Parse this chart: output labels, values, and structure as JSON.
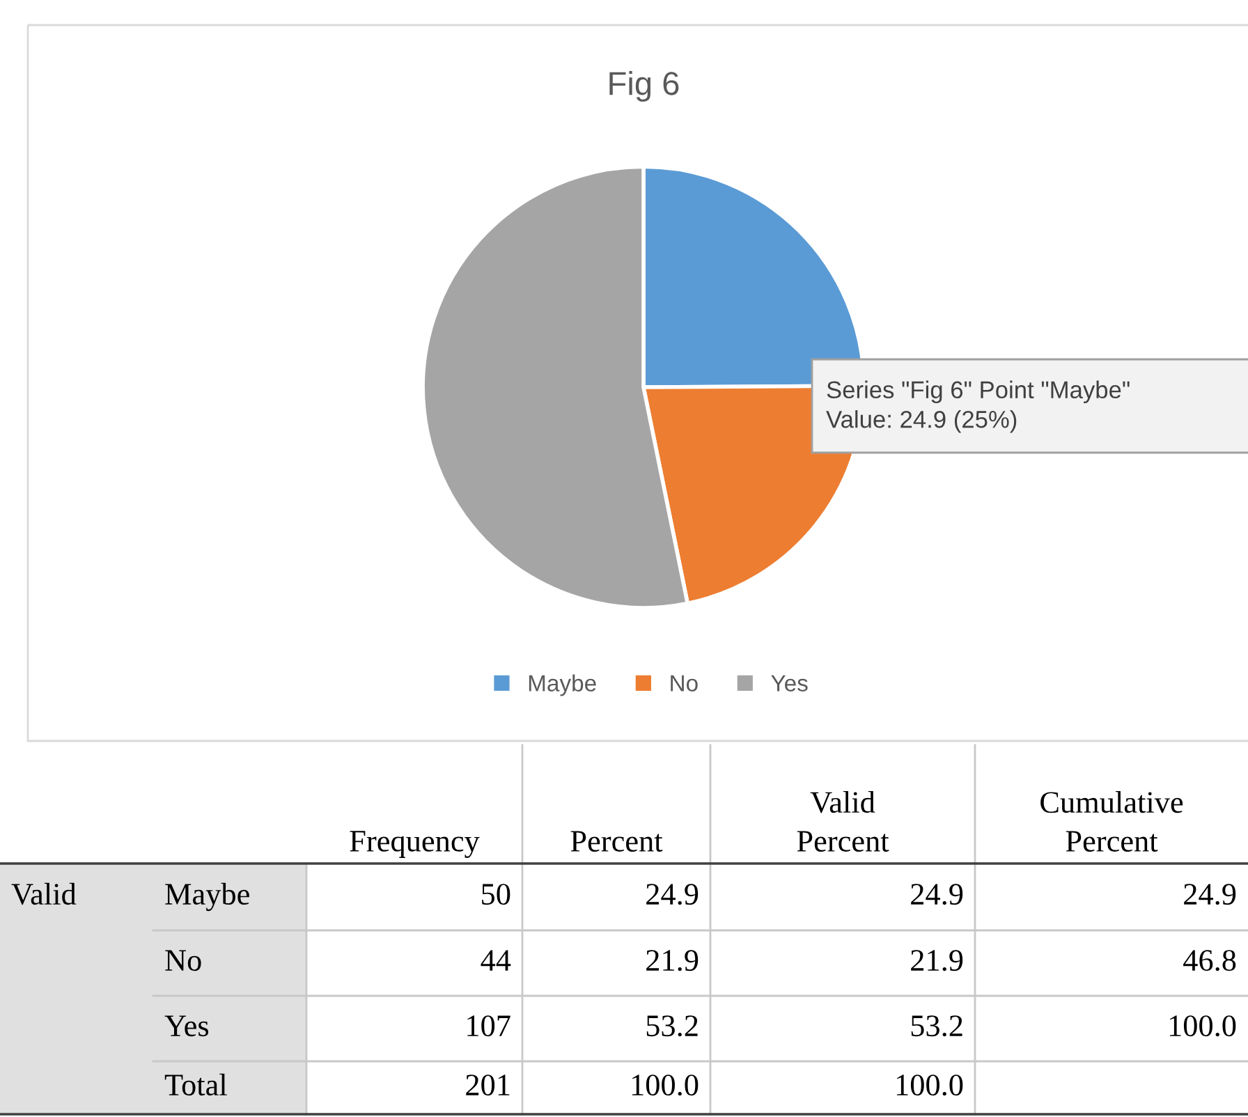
{
  "chart_data": {
    "type": "pie",
    "title": "Fig 6",
    "categories": [
      "Maybe",
      "No",
      "Yes"
    ],
    "values": [
      24.9,
      21.9,
      53.2
    ],
    "colors": [
      "#5b9bd5",
      "#ed7d31",
      "#a5a5a5"
    ],
    "legend": "bottom",
    "annotations": [
      "Series \"Fig 6\" Point \"Maybe\"\nValue: 24.9 (25%)",
      null,
      null,
      "Frequency",
      "Percent",
      "Valid\nPercent",
      "Cumulative\nPercent",
      "Valid",
      "Maybe",
      "50",
      "24.9",
      "24.9",
      "24.9",
      null,
      "No",
      "44",
      "21.9",
      "21.9",
      "46.8",
      null,
      "Yes",
      "107",
      "53.2",
      "53.2",
      "100.0",
      null,
      "Total",
      "201",
      "100.0",
      "100.0",
      null
    ]
  }
}
